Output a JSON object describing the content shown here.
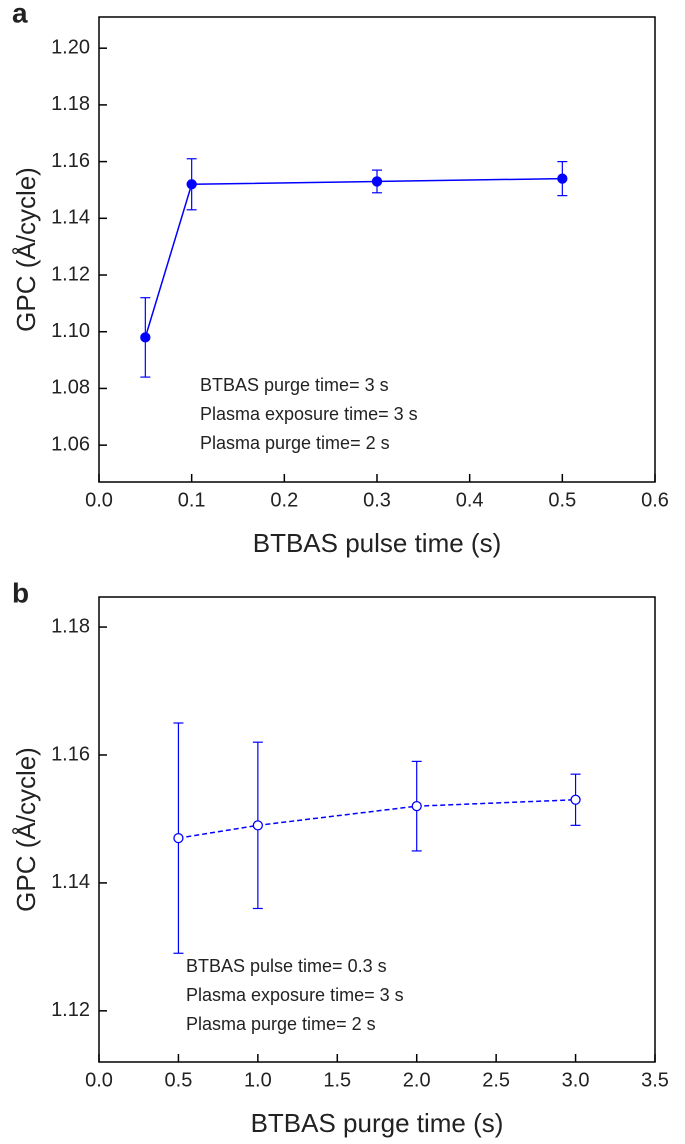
{
  "chart_data": [
    {
      "type": "line",
      "panel_label": "a",
      "xlabel": "BTBAS pulse time (s)",
      "ylabel": "GPC (Å/cycle)",
      "xlim": [
        0,
        0.6
      ],
      "xticks": [
        {
          "value": 0,
          "label": "0.0"
        },
        0.1,
        0.2,
        0.3,
        0.4,
        0.5,
        0.6
      ],
      "ylim": [
        1.047,
        1.211
      ],
      "yticks": [
        1.06,
        1.08,
        {
          "value": 1.1,
          "label": "1.10"
        },
        1.12,
        1.14,
        1.16,
        1.18,
        {
          "value": 1.2,
          "label": "1.20"
        }
      ],
      "series": [
        {
          "color": "#0000ff",
          "marker": "filled",
          "dashed": false,
          "x": [
            0.05,
            0.1,
            0.3,
            0.5
          ],
          "values": [
            1.098,
            1.152,
            1.153,
            1.154
          ],
          "errors": [
            0.014,
            0.009,
            0.004,
            0.006
          ]
        }
      ],
      "annotations": [
        "BTBAS purge time= 3 s",
        "Plasma exposure time= 3 s",
        "Plasma purge time= 2 s"
      ]
    },
    {
      "type": "line",
      "panel_label": "b",
      "xlabel": "BTBAS purge time (s)",
      "ylabel": "GPC (Å/cycle)",
      "xlim": [
        0,
        3.5
      ],
      "xticks": [
        {
          "value": 0,
          "label": "0.0"
        },
        0.5,
        {
          "value": 1,
          "label": "1.0"
        },
        1.5,
        {
          "value": 2,
          "label": "2.0"
        },
        2.5,
        {
          "value": 3,
          "label": "3.0"
        },
        3.5
      ],
      "ylim": [
        1.112,
        1.1847
      ],
      "yticks": [
        1.12,
        1.14,
        1.16,
        1.18
      ],
      "series": [
        {
          "color": "#0000ff",
          "marker": "open",
          "dashed": true,
          "x": [
            0.5,
            1,
            2,
            3
          ],
          "values": [
            1.147,
            1.149,
            1.152,
            1.153
          ],
          "errors": [
            0.018,
            0.013,
            0.007,
            0.004
          ]
        }
      ],
      "annotations": [
        "BTBAS pulse time= 0.3 s",
        "Plasma exposure time= 3 s",
        "Plasma purge time= 2 s"
      ]
    }
  ]
}
